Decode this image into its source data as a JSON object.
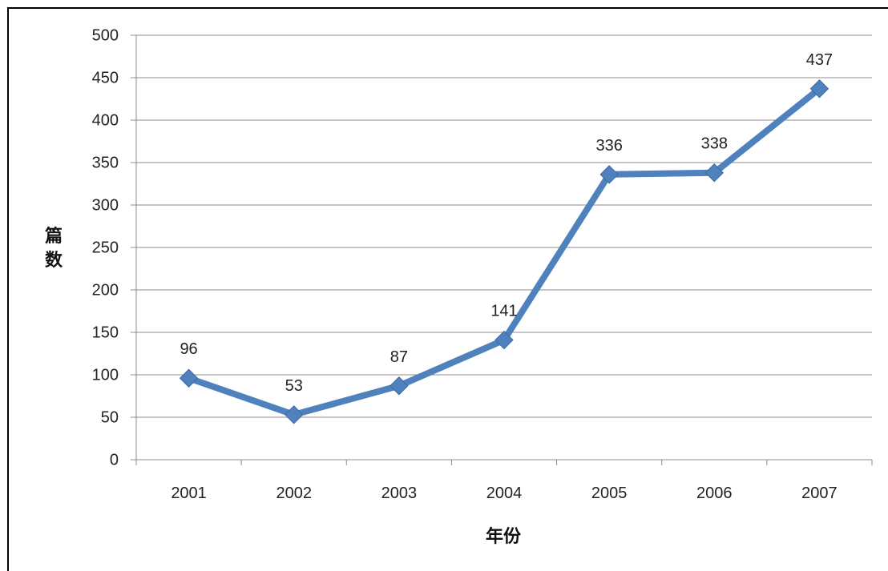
{
  "chart_data": {
    "type": "line",
    "categories": [
      "2001",
      "2002",
      "2003",
      "2004",
      "2005",
      "2006",
      "2007"
    ],
    "values": [
      96,
      53,
      87,
      141,
      336,
      338,
      437
    ],
    "xlabel": "年份",
    "ylabel": "篇数",
    "ylim": [
      0,
      500
    ],
    "yticks": [
      "0",
      "50",
      "100",
      "150",
      "200",
      "250",
      "300",
      "350",
      "400",
      "450",
      "500"
    ],
    "grid": true,
    "legend": "none",
    "data_labels": true,
    "series_color": "#4F81BD"
  }
}
